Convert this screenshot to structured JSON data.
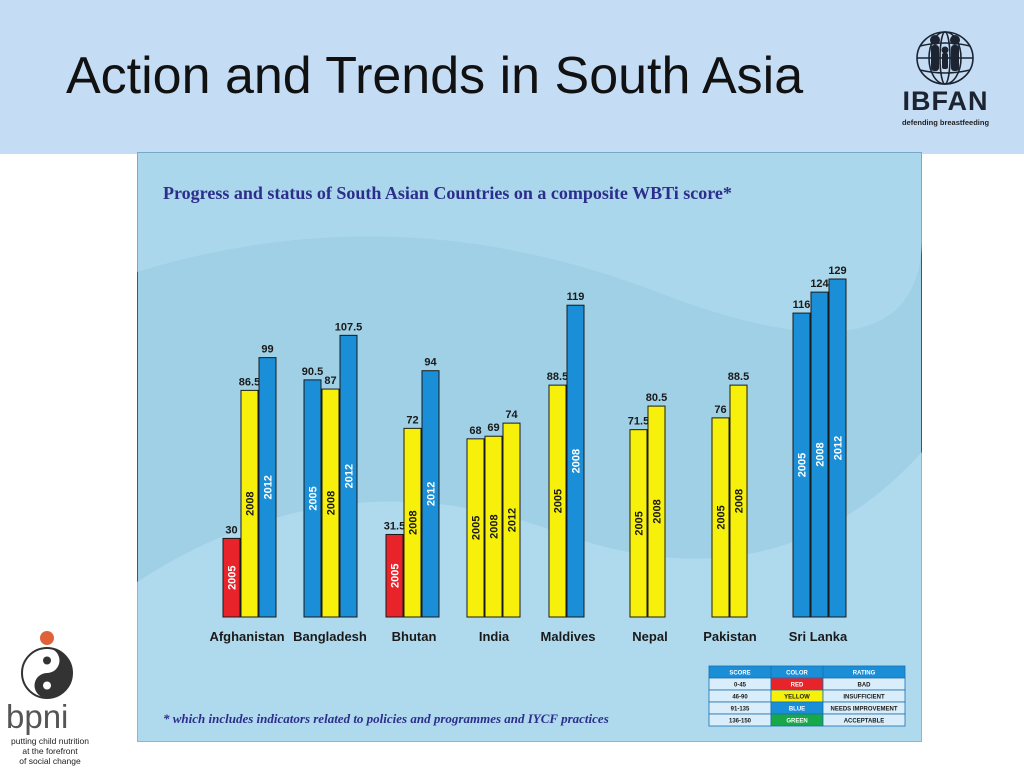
{
  "slide": {
    "title": "Action and Trends in South Asia",
    "logo_ibfan": {
      "name": "IBFAN",
      "tagline": "defending breastfeeding"
    },
    "logo_bpni": {
      "name": "bpni",
      "tagline": [
        "putting child nutrition",
        "at the forefront",
        "of social change"
      ]
    }
  },
  "chart_data": {
    "type": "bar",
    "title": "Progress and status of South Asian Countries on a composite WBTi score*",
    "footnote": "* which includes indicators related to policies and programmes and IYCF practices",
    "ylim": [
      0,
      140
    ],
    "categories": [
      "Afghanistan",
      "Bangladesh",
      "Bhutan",
      "India",
      "Maldives",
      "Nepal",
      "Pakistan",
      "Sri Lanka"
    ],
    "groups": [
      {
        "country": "Afghanistan",
        "bars": [
          {
            "year": "2005",
            "value": 30,
            "label": "30",
            "rating": "red"
          },
          {
            "year": "2008",
            "value": 86.5,
            "label": "86.5",
            "rating": "yellow"
          },
          {
            "year": "2012",
            "value": 99,
            "label": "99",
            "rating": "blue"
          }
        ]
      },
      {
        "country": "Bangladesh",
        "bars": [
          {
            "year": "2005",
            "value": 90.5,
            "label": "90.5",
            "rating": "blue"
          },
          {
            "year": "2008",
            "value": 87,
            "label": "87",
            "rating": "yellow"
          },
          {
            "year": "2012",
            "value": 107.5,
            "label": "107.5",
            "rating": "blue"
          }
        ]
      },
      {
        "country": "Bhutan",
        "bars": [
          {
            "year": "2005",
            "value": 31.5,
            "label": "31.5",
            "rating": "red"
          },
          {
            "year": "2008",
            "value": 72,
            "label": "72",
            "rating": "yellow"
          },
          {
            "year": "2012",
            "value": 94,
            "label": "94",
            "rating": "blue"
          }
        ]
      },
      {
        "country": "India",
        "bars": [
          {
            "year": "2005",
            "value": 68,
            "label": "68",
            "rating": "yellow"
          },
          {
            "year": "2008",
            "value": 69,
            "label": "69",
            "rating": "yellow"
          },
          {
            "year": "2012",
            "value": 74,
            "label": "74",
            "rating": "yellow"
          }
        ]
      },
      {
        "country": "Maldives",
        "bars": [
          {
            "year": "2005",
            "value": 88.5,
            "label": "88.5",
            "rating": "yellow"
          },
          {
            "year": "2008",
            "value": 119,
            "label": "119",
            "rating": "blue"
          }
        ]
      },
      {
        "country": "Nepal",
        "bars": [
          {
            "year": "2005",
            "value": 71.5,
            "label": "71.5",
            "rating": "yellow"
          },
          {
            "year": "2008",
            "value": 80.5,
            "label": "80.5",
            "rating": "yellow"
          }
        ]
      },
      {
        "country": "Pakistan",
        "bars": [
          {
            "year": "2005",
            "value": 76,
            "label": "76",
            "rating": "yellow"
          },
          {
            "year": "2008",
            "value": 88.5,
            "label": "88.5",
            "rating": "yellow"
          }
        ]
      },
      {
        "country": "Sri Lanka",
        "bars": [
          {
            "year": "2005",
            "value": 116,
            "label": "116",
            "rating": "blue"
          },
          {
            "year": "2008",
            "value": 124,
            "label": "124",
            "rating": "blue"
          },
          {
            "year": "2012",
            "value": 129,
            "label": "129",
            "rating": "blue"
          }
        ]
      }
    ],
    "legend_table": {
      "headers": [
        "SCORE",
        "COLOR",
        "RATING"
      ],
      "rows": [
        {
          "score": "0-45",
          "color": "RED",
          "rating": "BAD",
          "swatch": "#e8232a"
        },
        {
          "score": "46-90",
          "color": "YELLOW",
          "rating": "INSUFFICIENT",
          "swatch": "#f7f00a"
        },
        {
          "score": "91-135",
          "color": "BLUE",
          "rating": "NEEDS IMPROVEMENT",
          "swatch": "#1a8fd8"
        },
        {
          "score": "136-150",
          "color": "GREEN",
          "rating": "ACCEPTABLE",
          "swatch": "#17a84a"
        }
      ]
    },
    "colors": {
      "red": "#e8232a",
      "yellow": "#f7f00a",
      "blue": "#1a8fd8",
      "background": "#a9d8ec",
      "title": "#2d2d8c"
    }
  }
}
